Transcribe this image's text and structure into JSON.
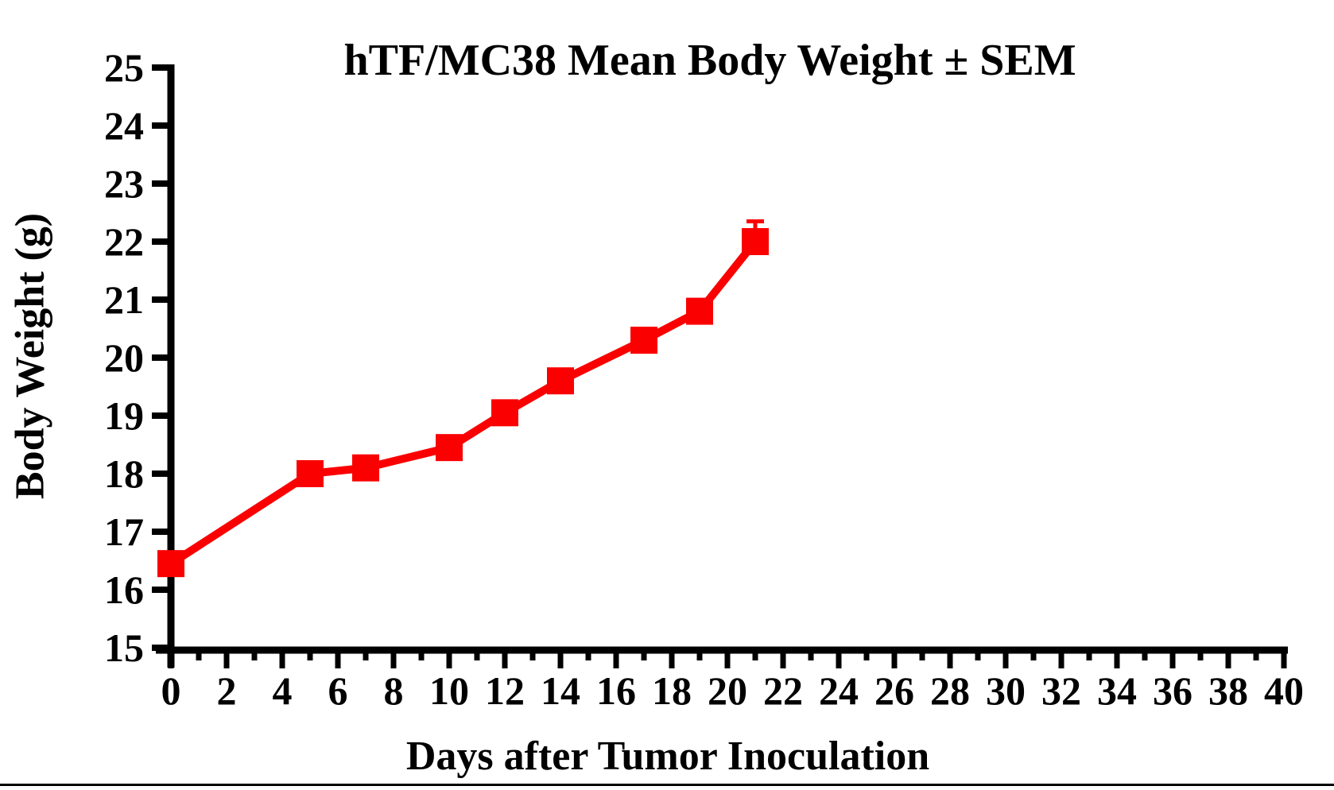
{
  "page": {
    "background_color": "#ffffff",
    "bottom_rule_color": "#000000"
  },
  "chart_data": {
    "type": "line",
    "title": "hTF/MC38 Mean Body Weight ± SEM",
    "xlabel": "Days after Tumor Inoculation",
    "ylabel": "Body Weight (g)",
    "xlim": [
      0,
      40
    ],
    "ylim": [
      15,
      25
    ],
    "x_major_tick_step": 2,
    "x_minor_tick_step": 1,
    "y_tick_step": 1,
    "x_tick_labels": [
      "0",
      "2",
      "4",
      "6",
      "8",
      "10",
      "12",
      "14",
      "16",
      "18",
      "20",
      "22",
      "24",
      "26",
      "28",
      "30",
      "32",
      "34",
      "36",
      "38",
      "40"
    ],
    "y_tick_labels": [
      "15",
      "16",
      "17",
      "18",
      "19",
      "20",
      "21",
      "22",
      "23",
      "24",
      "25"
    ],
    "grid": false,
    "legend": "none",
    "axis_color": "#000000",
    "series": [
      {
        "name": "hTF/MC38 mean body weight",
        "color": "#FA0000",
        "marker": "square",
        "x": [
          0,
          5,
          7,
          10,
          12,
          14,
          17,
          19,
          21
        ],
        "y": [
          16.45,
          18.0,
          18.1,
          18.45,
          19.05,
          19.6,
          20.3,
          20.8,
          22.0
        ],
        "sem_upper": [
          0,
          0,
          0,
          0,
          0,
          0,
          0,
          0,
          0.35
        ]
      }
    ]
  }
}
